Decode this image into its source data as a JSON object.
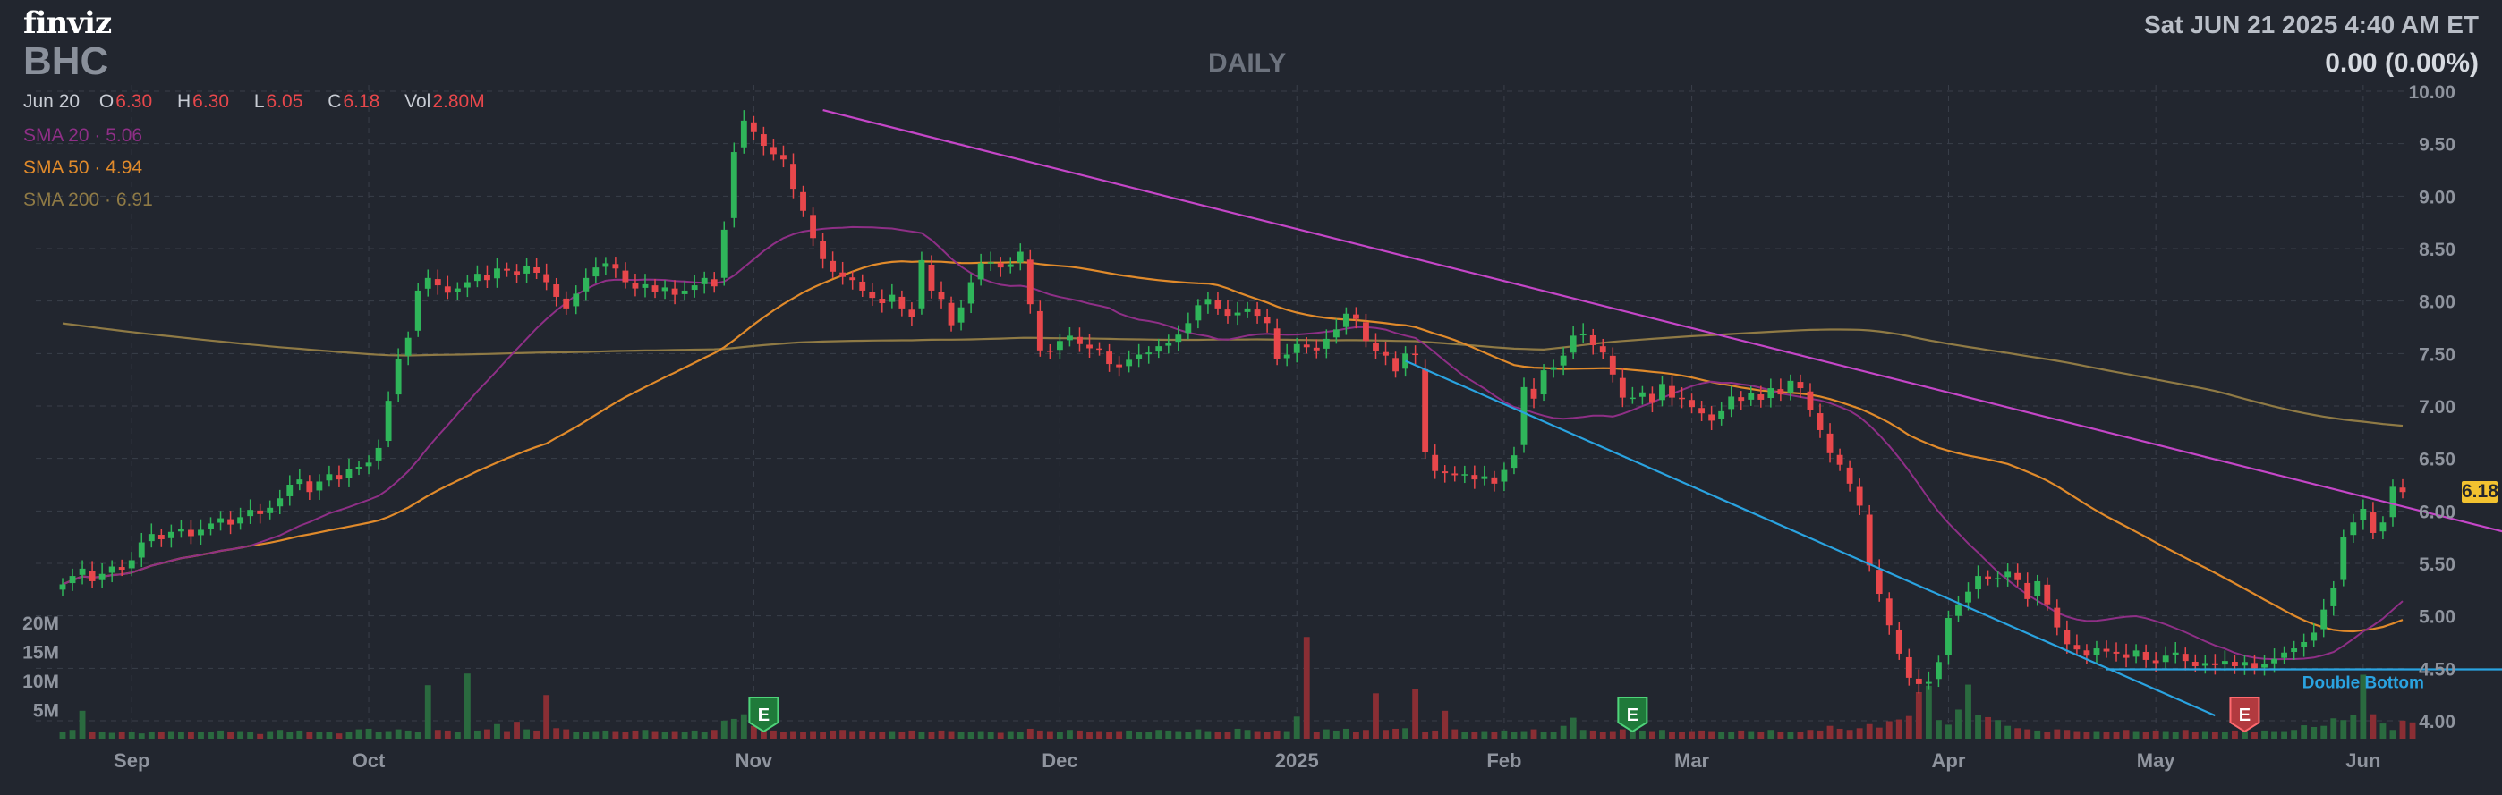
{
  "header": {
    "logo": "finviz",
    "ticker": "BHC",
    "period": "DAILY",
    "datetime": "Sat JUN 21 2025 4:40 AM ET",
    "change": "0.00 (0.00%)"
  },
  "ohlc": {
    "date": "Jun 20",
    "o_label": "O",
    "o": "6.30",
    "h_label": "H",
    "h": "6.30",
    "l_label": "L",
    "l": "6.05",
    "c_label": "C",
    "c": "6.18",
    "vol_label": "Vol",
    "vol": "2.80M"
  },
  "sma": {
    "sma20": "SMA 20 · 5.06",
    "sma50": "SMA 50 · 4.94",
    "sma200": "SMA 200 · 6.91"
  },
  "colors": {
    "up": "#2fb55a",
    "down": "#e8474b",
    "sma20": "#8e2f86",
    "sma50": "#e08a2b",
    "sma200": "#8f7a45",
    "resistance": "#c546c8",
    "support": "#2aa3e0",
    "double_bottom": "#2aa3e0"
  },
  "chart_data": {
    "type": "candlestick",
    "price_axis": {
      "min": 4.0,
      "max": 10.0,
      "ticks": [
        "10.00",
        "9.50",
        "9.00",
        "8.50",
        "8.00",
        "7.50",
        "7.00",
        "6.50",
        "6.00",
        "5.50",
        "5.00",
        "4.50",
        "4.00"
      ]
    },
    "volume_axis": {
      "ticks": [
        "20M",
        "15M",
        "10M",
        "5M"
      ],
      "max_millions": 20
    },
    "x_labels": [
      "Sep",
      "Oct",
      "Nov",
      "Dec",
      "2025",
      "Feb",
      "Mar",
      "Apr",
      "May",
      "Jun"
    ],
    "last_price_tag": "6.18",
    "closes": [
      5.3,
      5.38,
      5.45,
      5.33,
      5.4,
      5.47,
      5.44,
      5.53,
      5.7,
      5.78,
      5.73,
      5.8,
      5.83,
      5.76,
      5.82,
      5.88,
      5.93,
      5.87,
      5.94,
      6.01,
      5.97,
      6.03,
      6.12,
      6.25,
      6.3,
      6.18,
      6.28,
      6.35,
      6.3,
      6.4,
      6.42,
      6.46,
      6.6,
      7.05,
      7.45,
      7.65,
      8.1,
      8.22,
      8.15,
      8.08,
      8.12,
      8.18,
      8.26,
      8.2,
      8.31,
      8.29,
      8.25,
      8.33,
      8.27,
      8.18,
      8.04,
      7.93,
      8.07,
      8.22,
      8.32,
      8.36,
      8.31,
      8.18,
      8.12,
      8.16,
      8.09,
      8.13,
      8.06,
      8.1,
      8.15,
      8.22,
      8.14,
      8.68,
      9.42,
      9.72,
      9.61,
      9.48,
      9.4,
      9.35,
      9.07,
      8.86,
      8.6,
      8.4,
      8.28,
      8.23,
      8.2,
      8.1,
      8.03,
      7.98,
      8.06,
      7.93,
      7.85,
      8.39,
      8.1,
      8.02,
      7.77,
      7.94,
      8.18,
      8.36,
      8.37,
      8.32,
      8.35,
      8.47,
      7.97,
      7.53,
      7.52,
      7.62,
      7.67,
      7.59,
      7.55,
      7.54,
      7.4,
      7.37,
      7.44,
      7.49,
      7.51,
      7.57,
      7.6,
      7.68,
      7.79,
      7.96,
      8.02,
      7.93,
      7.86,
      7.89,
      7.93,
      7.86,
      7.79,
      7.45,
      7.49,
      7.59,
      7.56,
      7.53,
      7.64,
      7.73,
      7.88,
      7.83,
      7.62,
      7.52,
      7.48,
      7.33,
      7.5,
      7.49,
      6.56,
      6.38,
      6.36,
      6.34,
      6.35,
      6.3,
      6.33,
      6.26,
      6.39,
      6.53,
      7.18,
      7.07,
      7.34,
      7.37,
      7.48,
      7.67,
      7.69,
      7.58,
      7.51,
      7.3,
      7.08,
      7.08,
      7.13,
      7.03,
      7.21,
      7.08,
      7.07,
      6.99,
      6.93,
      6.86,
      6.95,
      7.09,
      7.05,
      7.12,
      7.06,
      7.17,
      7.11,
      7.24,
      7.17,
      6.96,
      6.77,
      6.55,
      6.44,
      6.26,
      6.05,
      5.48,
      5.21,
      4.91,
      4.64,
      4.41,
      4.35,
      4.37,
      4.56,
      4.98,
      5.11,
      5.23,
      5.38,
      5.35,
      5.36,
      5.42,
      5.34,
      5.16,
      5.33,
      5.11,
      4.89,
      4.73,
      4.68,
      4.62,
      4.69,
      4.66,
      4.64,
      4.6,
      4.67,
      4.58,
      4.55,
      4.62,
      4.65,
      4.57,
      4.52,
      4.55,
      4.53,
      4.57,
      4.52,
      4.56,
      4.5,
      4.54,
      4.59,
      4.65,
      4.69,
      4.75,
      4.84,
      5.06,
      5.27,
      5.75,
      5.89,
      6.02,
      5.79,
      5.89,
      6.23,
      6.18
    ],
    "volumes_m": [
      1.1,
      1.5,
      4.8,
      1.2,
      1.1,
      1.0,
      1.1,
      1.2,
      0.9,
      1.1,
      1.2,
      1.3,
      1.1,
      1.2,
      1.2,
      1.1,
      1.4,
      1.2,
      1.3,
      1.1,
      0.8,
      1.3,
      1.5,
      1.2,
      1.4,
      1.1,
      1.2,
      1.1,
      0.9,
      1.2,
      1.6,
      1.7,
      1.2,
      1.3,
      1.6,
      1.4,
      1.1,
      9.2,
      1.5,
      1.4,
      1.2,
      11.2,
      1.4,
      1.6,
      2.5,
      1.3,
      2.9,
      1.6,
      1.4,
      7.5,
      1.8,
      1.6,
      1.1,
      1.2,
      1.3,
      1.4,
      1.3,
      1.2,
      1.4,
      1.5,
      1.3,
      1.2,
      1.3,
      1.1,
      1.4,
      1.2,
      1.5,
      3.1,
      3.4,
      4.2,
      2.2,
      1.8,
      1.4,
      1.2,
      1.3,
      1.1,
      1.3,
      1.2,
      1.4,
      1.5,
      1.3,
      1.4,
      1.2,
      1.1,
      1.3,
      1.2,
      1.4,
      1.1,
      1.2,
      1.4,
      1.3,
      1.2,
      1.1,
      1.3,
      1.2,
      1.0,
      1.3,
      1.2,
      1.7,
      1.4,
      1.3,
      1.2,
      1.5,
      1.4,
      1.2,
      1.3,
      1.1,
      1.3,
      1.4,
      1.2,
      1.1,
      1.5,
      1.4,
      1.3,
      1.2,
      1.6,
      1.3,
      1.2,
      1.1,
      1.7,
      1.5,
      1.3,
      1.2,
      1.4,
      1.3,
      3.8,
      17.5,
      1.2,
      1.6,
      1.4,
      1.7,
      1.2,
      1.5,
      7.8,
      1.5,
      1.7,
      1.8,
      8.6,
      1.2,
      1.4,
      4.8,
      1.6,
      1.1,
      1.2,
      1.3,
      1.2,
      1.4,
      1.2,
      1.3,
      1.6,
      1.1,
      1.2,
      2.2,
      3.6,
      1.5,
      1.4,
      1.2,
      1.3,
      1.6,
      1.5,
      1.4,
      1.3,
      1.5,
      1.1,
      1.2,
      1.3,
      1.4,
      1.3,
      1.2,
      1.1,
      1.4,
      1.3,
      1.2,
      1.5,
      1.2,
      1.1,
      1.2,
      1.5,
      1.4,
      2.2,
      1.7,
      1.5,
      1.8,
      2.5,
      1.9,
      3.0,
      3.3,
      3.9,
      8.0,
      9.1,
      3.2,
      2.4,
      5.0,
      9.3,
      4.1,
      3.7,
      3.2,
      2.2,
      1.8,
      1.6,
      1.4,
      1.2,
      1.6,
      1.5,
      1.3,
      1.2,
      1.3,
      1.1,
      1.2,
      1.5,
      1.3,
      1.2,
      1.4,
      1.3,
      1.2,
      1.5,
      1.2,
      1.3,
      1.1,
      1.2,
      1.4,
      1.3,
      1.2,
      1.4,
      1.3,
      1.3,
      1.5,
      2.3,
      2.0,
      2.2,
      3.5,
      3.2,
      4.1,
      11.0,
      4.2,
      2.6,
      1.5,
      3.1,
      2.8
    ],
    "earnings_markers": [
      {
        "label": "E",
        "index": 71,
        "type": "positive"
      },
      {
        "label": "E",
        "index": 159,
        "type": "positive"
      },
      {
        "label": "E",
        "index": 221,
        "type": "negative"
      }
    ],
    "trendlines": [
      {
        "name": "resistance",
        "from": {
          "i": 77,
          "p": 9.82
        },
        "to": {
          "i": 260,
          "p": 5.5
        }
      },
      {
        "name": "support",
        "from": {
          "i": 136,
          "p": 7.43
        },
        "to": {
          "i": 218,
          "p": 4.05
        }
      },
      {
        "name": "double_bottom",
        "from": {
          "i": 207,
          "p": 4.49
        },
        "to": {
          "i": 260,
          "p": 4.49
        }
      }
    ],
    "annotations": [
      {
        "text": "Double Bottom",
        "i": 233,
        "p": 4.38
      }
    ]
  }
}
